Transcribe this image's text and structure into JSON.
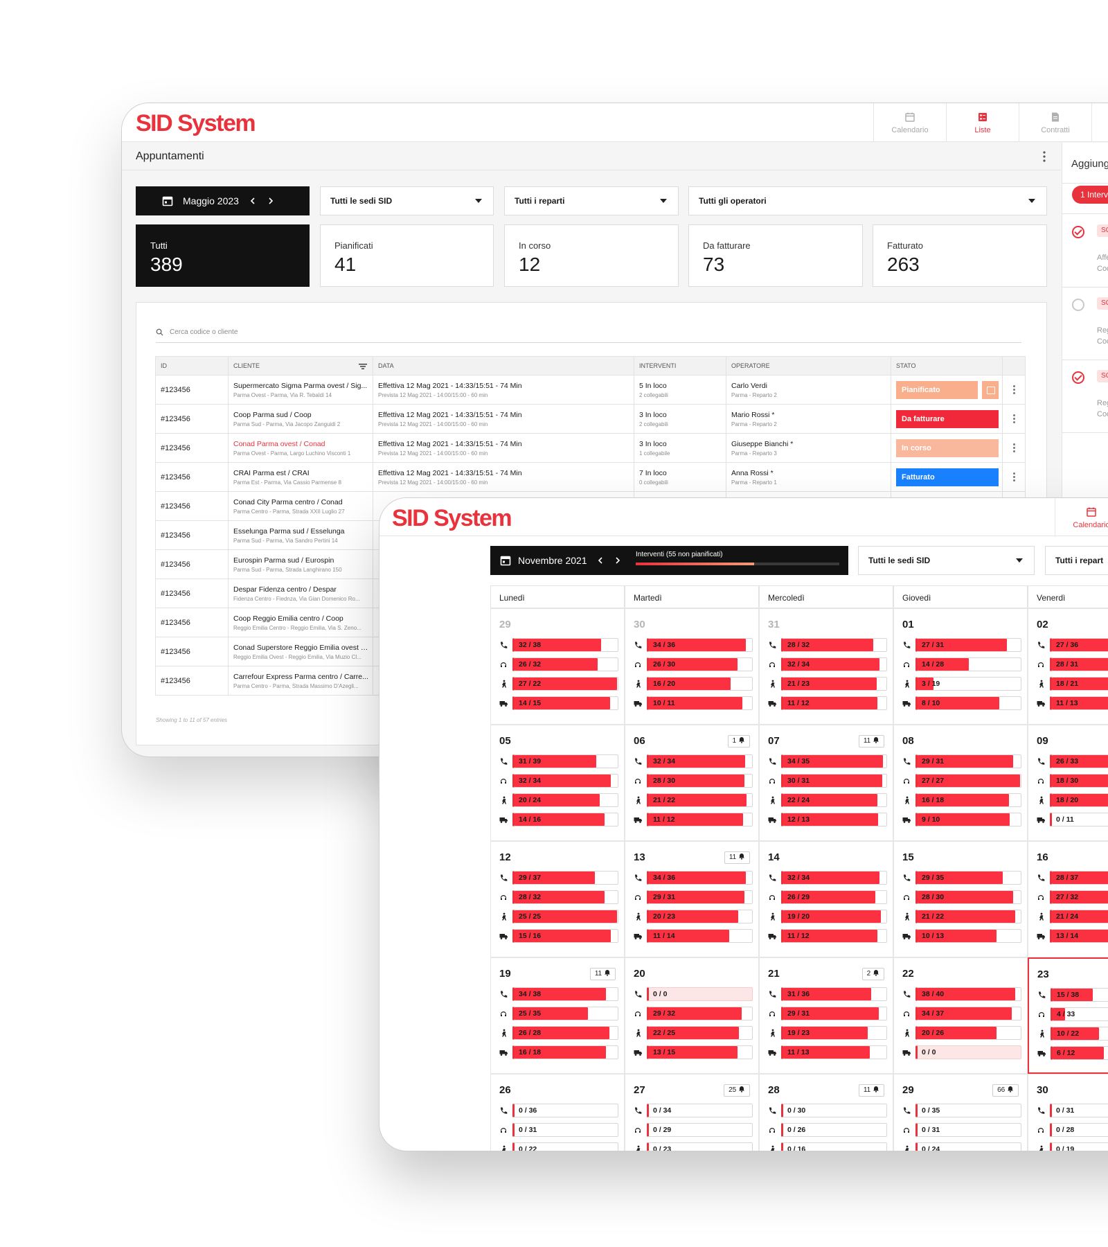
{
  "colors": {
    "brand": "#e8323c",
    "dark": "#121212",
    "planned": "#f9ae8c",
    "to_invoice": "#f0283a",
    "in_progress": "#f9b79c",
    "invoiced": "#1a82ff"
  },
  "win1": {
    "logo": "SID System",
    "nav": [
      {
        "label": "Calendario",
        "icon": "calendar-icon"
      },
      {
        "label": "Liste",
        "icon": "list-icon",
        "active": true
      },
      {
        "label": "Contratti",
        "icon": "document-icon"
      }
    ],
    "page_title": "Appuntamenti",
    "month": "Maggio 2023",
    "filters": [
      "Tutti le sedi SID",
      "Tutti i reparti",
      "Tutti gli operatori"
    ],
    "stats": [
      {
        "label": "Tutti",
        "value": "389"
      },
      {
        "label": "Pianificati",
        "value": "41"
      },
      {
        "label": "In corso",
        "value": "12"
      },
      {
        "label": "Da fatturare",
        "value": "73"
      },
      {
        "label": "Fatturato",
        "value": "263"
      }
    ],
    "search_placeholder": "Cerca codice o cliente",
    "columns": [
      "ID",
      "CLIENTE",
      "DATA",
      "INTERVENTI",
      "OPERATORE",
      "STATO"
    ],
    "rows": [
      {
        "id": "#123456",
        "client": "Supermercato Sigma Parma ovest / Sig...",
        "address": "Parma Ovest - Parma, Via R. Tebaldi 14",
        "date": "Effettiva 12 Mag 2021 - 14:33/15:51 - 74 Min",
        "date_sub": "Prevista 12 Mag 2021 - 14:00/15:00 - 60 min",
        "int": "5 In loco",
        "int_sub": "2 collegabili",
        "op": "Carlo Verdi",
        "op_sub": "Parma - Reparto 2",
        "status": "Pianificato",
        "status_color": "#f9ae8c"
      },
      {
        "id": "#123456",
        "client": "Coop Parma sud / Coop",
        "address": "Parma Sud - Parma, Via Jacopo Zanguidi 2",
        "date": "Effettiva 12 Mag 2021 - 14:33/15:51 - 74 Min",
        "date_sub": "Prevista 12 Mag 2021 - 14:00/15:00 - 60 min",
        "int": "3 In loco",
        "int_sub": "2 collegabili",
        "op": "Mario Rossi *",
        "op_sub": "Parma - Reparto 2",
        "status": "Da fatturare",
        "status_color": "#f0283a"
      },
      {
        "id": "#123456",
        "client": "Conad Parma ovest / Conad",
        "address": "Parma Ovest - Parma, Largo Luchino Visconti 1",
        "date": "Effettiva 12 Mag 2021 - 14:33/15:51 - 74 Min",
        "date_sub": "Prevista 12 Mag 2021 - 14:00/15:00 - 60 min",
        "int": "3 In loco",
        "int_sub": "1 collegabile",
        "op": "Giuseppe Bianchi *",
        "op_sub": "Parma - Reparto 3",
        "status": "In corso",
        "status_color": "#f9b79c"
      },
      {
        "id": "#123456",
        "client": "CRAI Parma est / CRAI",
        "address": "Parma Est - Parma, Via Cassio Parmense 8",
        "date": "Effettiva 12 Mag 2021 - 14:33/15:51 - 74 Min",
        "date_sub": "Prevista 12 Mag 2021 - 14:00/15:00 - 60 min",
        "int": "7 In loco",
        "int_sub": "0 collegabili",
        "op": "Anna Rossi *",
        "op_sub": "Parma - Reparto 1",
        "status": "Fatturato",
        "status_color": "#1a82ff"
      },
      {
        "id": "#123456",
        "client": "Conad City Parma centro / Conad",
        "address": "Parma Centro - Parma, Strada XXII Luglio 27"
      },
      {
        "id": "#123456",
        "client": "Esselunga Parma sud / Esselunga",
        "address": "Parma Sud - Parma, Via Sandro Pertini 14"
      },
      {
        "id": "#123456",
        "client": "Eurospin Parma sud / Eurospin",
        "address": "Parma Sud - Parma, Strada Langhirano 150"
      },
      {
        "id": "#123456",
        "client": "Despar Fidenza centro / Despar",
        "address": "Fidenza Centro - Fiednza, Via Gian Domenico Ro..."
      },
      {
        "id": "#123456",
        "client": "Coop Reggio Emilia centro / Coop",
        "address": "Reggio Emilia Centro - Reggio Emilia, Via S. Zeno..."
      },
      {
        "id": "#123456",
        "client": "Conad Superstore Reggio Emilia ovest / ...",
        "address": "Reggio Emilia Ovest - Reggio Emilia, Via Muzio Cl..."
      },
      {
        "id": "#123456",
        "client": "Carrefour Express Parma centro / Carre...",
        "address": "Parma Centro - Parma, Strada Massimo D'Azegli..."
      }
    ],
    "footer": "Showing 1 to 11 of 57 entries",
    "side_title": "Aggiung",
    "side_pill": "1  Interv",
    "side_items": [
      {
        "checked": true,
        "tag": "SC",
        "l1": "! ",
        "l2": "Affe",
        "l3": "Coo"
      },
      {
        "checked": false,
        "tag": "SC",
        "l1": "! ",
        "l2": "Reg",
        "l3": "Coo"
      },
      {
        "checked": true,
        "tag": "SC",
        "l1": "! ",
        "l2": "Reg",
        "l3": "Coo"
      }
    ]
  },
  "win2": {
    "logo": "SID System",
    "nav_label": "Calendario",
    "month": "Novembre 2021",
    "progress_label": "Interventi (55 non pianificati)",
    "progress_fraction": 0.58,
    "filters": [
      "Tutti le sedi SID",
      "Tutti i repart"
    ],
    "weekdays": [
      "Lunedì",
      "Martedì",
      "Mercoledì",
      "Giovedì",
      "Venerdì"
    ],
    "row_icons": [
      "phone-icon",
      "headset-icon",
      "worker-icon",
      "truck-icon"
    ],
    "weeks": [
      [
        {
          "n": "29",
          "muted": true,
          "bars": [
            [
              32,
              38
            ],
            [
              26,
              32
            ],
            [
              27,
              22
            ],
            [
              14,
              15
            ]
          ]
        },
        {
          "n": "30",
          "muted": true,
          "bars": [
            [
              34,
              36
            ],
            [
              26,
              30
            ],
            [
              16,
              20
            ],
            [
              10,
              11
            ]
          ]
        },
        {
          "n": "31",
          "muted": true,
          "bars": [
            [
              28,
              32
            ],
            [
              32,
              34
            ],
            [
              21,
              23
            ],
            [
              11,
              12
            ]
          ]
        },
        {
          "n": "01",
          "bars": [
            [
              27,
              31
            ],
            [
              14,
              28
            ],
            [
              3,
              19
            ],
            [
              8,
              10
            ]
          ]
        },
        {
          "n": "02",
          "bars": [
            [
              27,
              36
            ],
            [
              28,
              31
            ],
            [
              18,
              21
            ],
            [
              11,
              13
            ]
          ]
        }
      ],
      [
        {
          "n": "05",
          "bars": [
            [
              31,
              39
            ],
            [
              32,
              34
            ],
            [
              20,
              24
            ],
            [
              14,
              16
            ]
          ]
        },
        {
          "n": "06",
          "bell": "1",
          "bars": [
            [
              32,
              34
            ],
            [
              28,
              30
            ],
            [
              21,
              22
            ],
            [
              11,
              12
            ]
          ]
        },
        {
          "n": "07",
          "bell": "11",
          "bars": [
            [
              34,
              35
            ],
            [
              30,
              31
            ],
            [
              22,
              24
            ],
            [
              12,
              13
            ]
          ]
        },
        {
          "n": "08",
          "bars": [
            [
              29,
              31
            ],
            [
              27,
              27
            ],
            [
              16,
              18
            ],
            [
              9,
              10
            ]
          ]
        },
        {
          "n": "09",
          "bars": [
            [
              26,
              33
            ],
            [
              18,
              30
            ],
            [
              18,
              20
            ],
            [
              0,
              11
            ]
          ]
        }
      ],
      [
        {
          "n": "12",
          "bars": [
            [
              29,
              37
            ],
            [
              28,
              32
            ],
            [
              25,
              25
            ],
            [
              15,
              16
            ]
          ]
        },
        {
          "n": "13",
          "bell": "11",
          "bars": [
            [
              34,
              36
            ],
            [
              29,
              31
            ],
            [
              20,
              23
            ],
            [
              11,
              14
            ]
          ]
        },
        {
          "n": "14",
          "bars": [
            [
              32,
              34
            ],
            [
              26,
              29
            ],
            [
              19,
              20
            ],
            [
              11,
              12
            ]
          ]
        },
        {
          "n": "15",
          "bars": [
            [
              29,
              35
            ],
            [
              28,
              30
            ],
            [
              21,
              22
            ],
            [
              10,
              13
            ]
          ]
        },
        {
          "n": "16",
          "bars": [
            [
              28,
              37
            ],
            [
              27,
              32
            ],
            [
              21,
              24
            ],
            [
              13,
              14
            ]
          ]
        }
      ],
      [
        {
          "n": "19",
          "bell": "11",
          "bars": [
            [
              34,
              38
            ],
            [
              25,
              35
            ],
            [
              26,
              28
            ],
            [
              16,
              18
            ]
          ]
        },
        {
          "n": "20",
          "bars": [
            [
              0,
              0
            ],
            [
              29,
              32
            ],
            [
              22,
              25
            ],
            [
              13,
              15
            ]
          ]
        },
        {
          "n": "21",
          "bell": "2",
          "bars": [
            [
              31,
              36
            ],
            [
              29,
              31
            ],
            [
              19,
              23
            ],
            [
              11,
              13
            ]
          ]
        },
        {
          "n": "22",
          "bars": [
            [
              38,
              40
            ],
            [
              34,
              37
            ],
            [
              20,
              26
            ],
            [
              0,
              0
            ]
          ]
        },
        {
          "n": "23",
          "today": true,
          "bars": [
            [
              15,
              38
            ],
            [
              4,
              33
            ],
            [
              10,
              22
            ],
            [
              6,
              12
            ]
          ]
        }
      ],
      [
        {
          "n": "26",
          "bars": [
            [
              0,
              36
            ],
            [
              0,
              31
            ],
            [
              0,
              22
            ]
          ]
        },
        {
          "n": "27",
          "bell": "25",
          "bars": [
            [
              0,
              34
            ],
            [
              0,
              29
            ],
            [
              0,
              23
            ]
          ]
        },
        {
          "n": "28",
          "bell": "11",
          "bars": [
            [
              0,
              30
            ],
            [
              0,
              26
            ],
            [
              0,
              16
            ]
          ]
        },
        {
          "n": "29",
          "bell": "66",
          "bars": [
            [
              0,
              35
            ],
            [
              0,
              31
            ],
            [
              0,
              24
            ]
          ]
        },
        {
          "n": "30",
          "bars": [
            [
              0,
              31
            ],
            [
              0,
              28
            ],
            [
              0,
              19
            ]
          ]
        }
      ]
    ]
  }
}
